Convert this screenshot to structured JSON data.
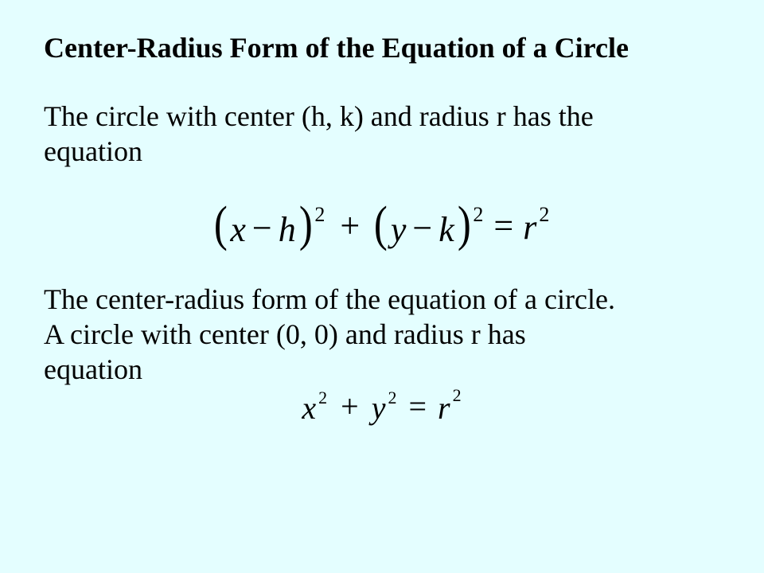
{
  "background_color": "#e4feff",
  "text_color": "#000000",
  "font_family": "Times New Roman",
  "title": "Center-Radius Form of the Equation of a Circle",
  "para1_line1": "The circle with center (h, k) and radius r has the",
  "para1_line2": "equation",
  "equation1": {
    "term1": {
      "lparen": "(",
      "a": "x",
      "op": "−",
      "b": "h",
      "rparen": ")",
      "exp": "2"
    },
    "plus": "+",
    "term2": {
      "lparen": "(",
      "a": "y",
      "op": "−",
      "b": "k",
      "rparen": ")",
      "exp": "2"
    },
    "equals": "=",
    "rhs": {
      "base": "r",
      "exp": "2"
    },
    "fontsize_base": 44,
    "fontsize_paren": 62,
    "fontsize_exp": 26
  },
  "para2_line1": "The center-radius form of the equation of a circle.",
  "para2_line2": "A circle with center (0, 0) and radius r has",
  "para2_line3": "equation",
  "equation2": {
    "term1": {
      "base": "x",
      "exp": "2"
    },
    "plus": "+",
    "term2": {
      "base": "y",
      "exp": "2"
    },
    "equals": "=",
    "rhs": {
      "base": "r",
      "exp": "2"
    },
    "fontsize_base": 40,
    "fontsize_exp": 22
  }
}
